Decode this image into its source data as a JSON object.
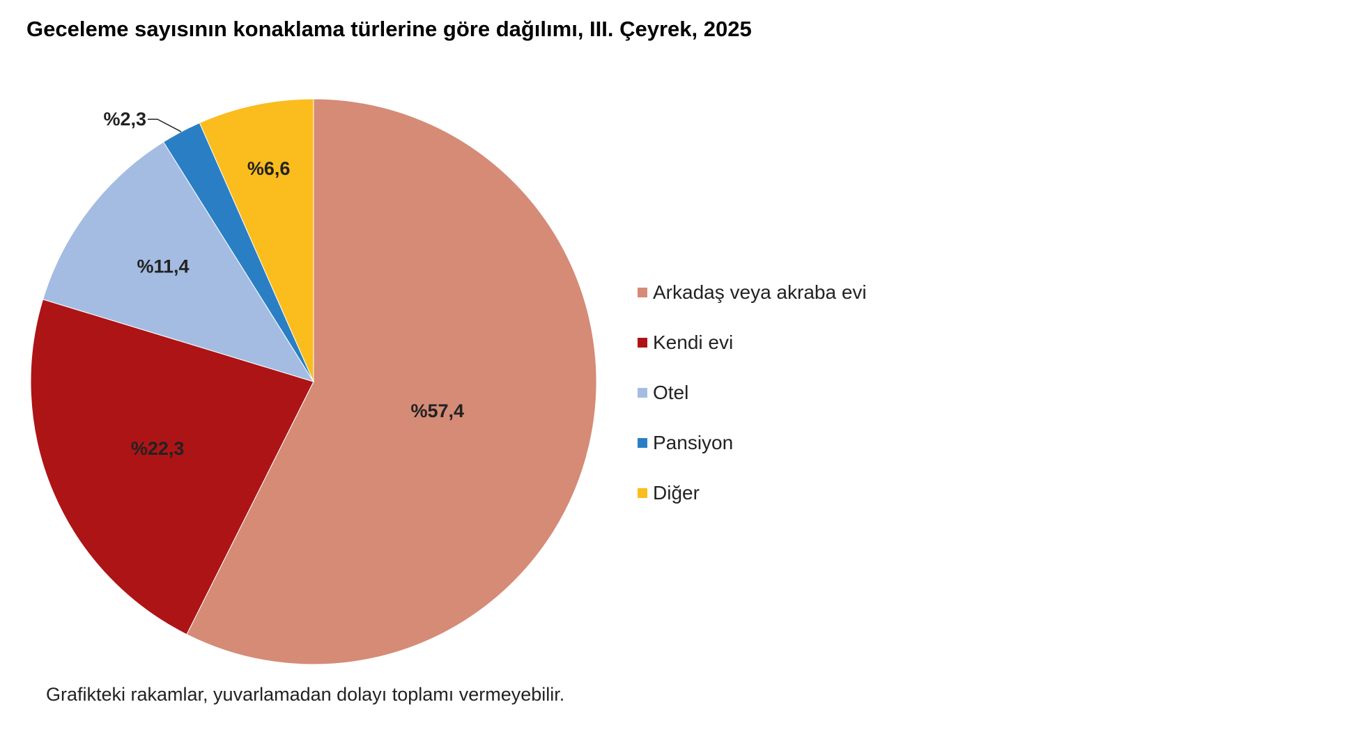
{
  "title": "Geceleme sayısının konaklama türlerine göre dağılımı, III. Çeyrek, 2025",
  "footnote": "Grafikteki rakamlar, yuvarlamadan dolayı toplamı vermeyebilir.",
  "chart_data": {
    "type": "pie",
    "title": "Geceleme sayısının konaklama türlerine göre dağılımı, III. Çeyrek, 2025",
    "start": "12 o'clock",
    "direction": "clockwise",
    "legend_position": "right",
    "slices": [
      {
        "label": "Arkadaş veya akraba evi",
        "value": 57.4,
        "display": "%57,4",
        "color": "#D58B76"
      },
      {
        "label": "Kendi evi",
        "value": 22.3,
        "display": "%22,3",
        "color": "#AD1416"
      },
      {
        "label": "Otel",
        "value": 11.4,
        "display": "%11,4",
        "color": "#A4BCE2"
      },
      {
        "label": "Pansiyon",
        "value": 2.3,
        "display": "%2,3",
        "color": "#2A7FC4"
      },
      {
        "label": "Diğer",
        "value": 6.6,
        "display": "%6,6",
        "color": "#FBBC1D"
      }
    ]
  }
}
